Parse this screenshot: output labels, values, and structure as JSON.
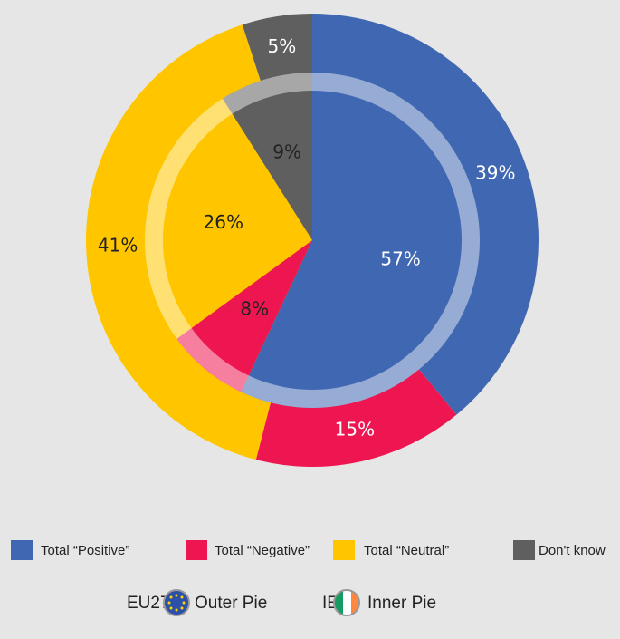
{
  "chart_data": {
    "type": "pie",
    "categories": [
      "Total “Positive”",
      "Total “Negative”",
      "Total “Neutral”",
      "Don't know"
    ],
    "colors": [
      "#4068b2",
      "#ee1651",
      "#ffc600",
      "#5f5f5f"
    ],
    "series": [
      {
        "name": "EU27",
        "label": "Outer Pie",
        "values": [
          39,
          15,
          41,
          5
        ],
        "value_labels": [
          "39%",
          "15%",
          "41%",
          "5%"
        ]
      },
      {
        "name": "IE",
        "label": "Inner Pie",
        "values": [
          57,
          8,
          26,
          9
        ],
        "value_labels": [
          "57%",
          "8%",
          "26%",
          "9%"
        ]
      }
    ]
  }
}
